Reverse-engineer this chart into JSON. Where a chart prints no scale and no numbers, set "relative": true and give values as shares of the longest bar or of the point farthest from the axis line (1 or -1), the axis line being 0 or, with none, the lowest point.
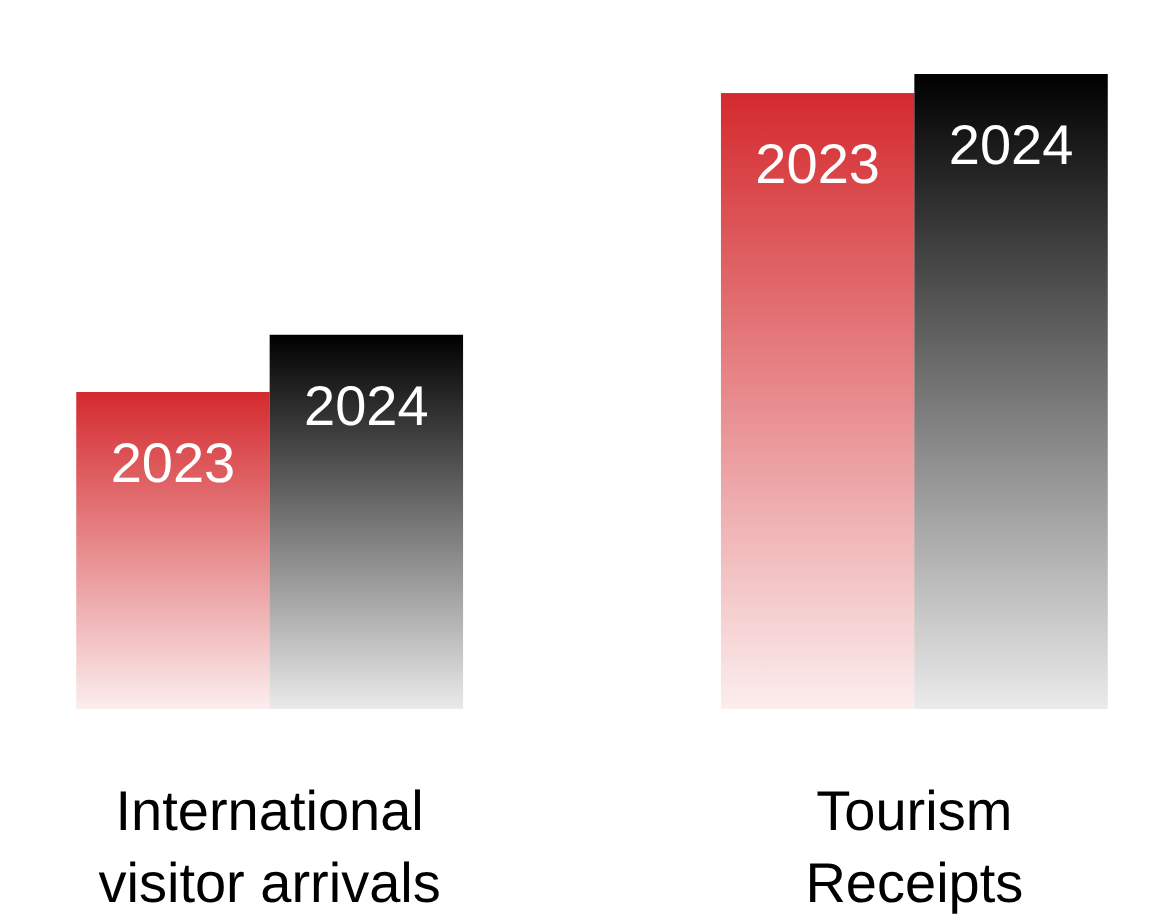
{
  "chart_data": {
    "type": "bar",
    "relative": true,
    "categories": [
      "International visitor arrivals",
      "Tourism Receipts"
    ],
    "series": [
      {
        "name": "2023",
        "color": "#d42a2e",
        "values": [
          0.5,
          0.97
        ]
      },
      {
        "name": "2024",
        "color": "#000000",
        "values": [
          0.59,
          1
        ]
      }
    ]
  }
}
